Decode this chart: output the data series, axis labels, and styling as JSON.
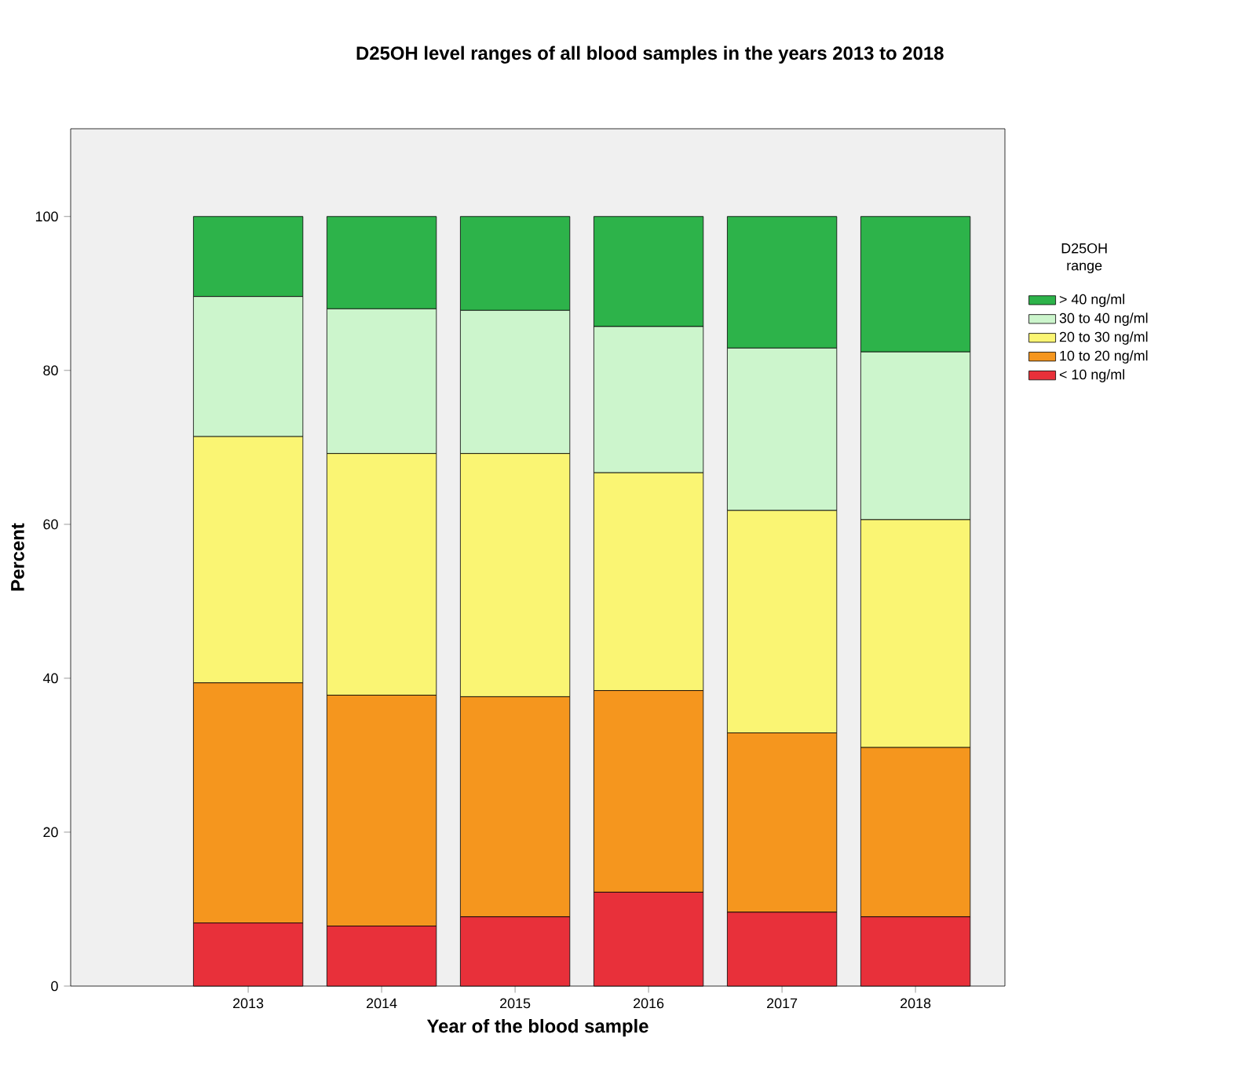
{
  "chart_data": {
    "type": "bar",
    "stacked": true,
    "title": "D25OH level ranges of all blood samples in the years 2013 to 2018",
    "xlabel": "Year of the blood sample",
    "ylabel": "Percent",
    "legend_title": "D25OH range",
    "legend": "right",
    "categories": [
      "2013",
      "2014",
      "2015",
      "2016",
      "2017",
      "2018"
    ],
    "ylim": [
      0,
      111.4
    ],
    "yticks": [
      0,
      20,
      40,
      60,
      80,
      100
    ],
    "series": [
      {
        "name": "< 10 ng/ml",
        "color": "#e8303a",
        "values": [
          8.2,
          7.8,
          9.0,
          12.2,
          9.6,
          9.0
        ]
      },
      {
        "name": "10 to 20 ng/ml",
        "color": "#f5961e",
        "values": [
          31.2,
          30.0,
          28.6,
          26.2,
          23.3,
          22.0
        ]
      },
      {
        "name": "20 to 30 ng/ml",
        "color": "#faf573",
        "values": [
          32.0,
          31.4,
          31.6,
          28.3,
          28.9,
          29.6
        ]
      },
      {
        "name": "30 to 40 ng/ml",
        "color": "#ccf5cc",
        "values": [
          18.2,
          18.8,
          18.6,
          19.0,
          21.1,
          21.8
        ]
      },
      {
        "name": "> 40 ng/ml",
        "color": "#2db34a",
        "values": [
          10.4,
          12.0,
          12.2,
          14.3,
          17.1,
          17.6
        ]
      }
    ]
  }
}
